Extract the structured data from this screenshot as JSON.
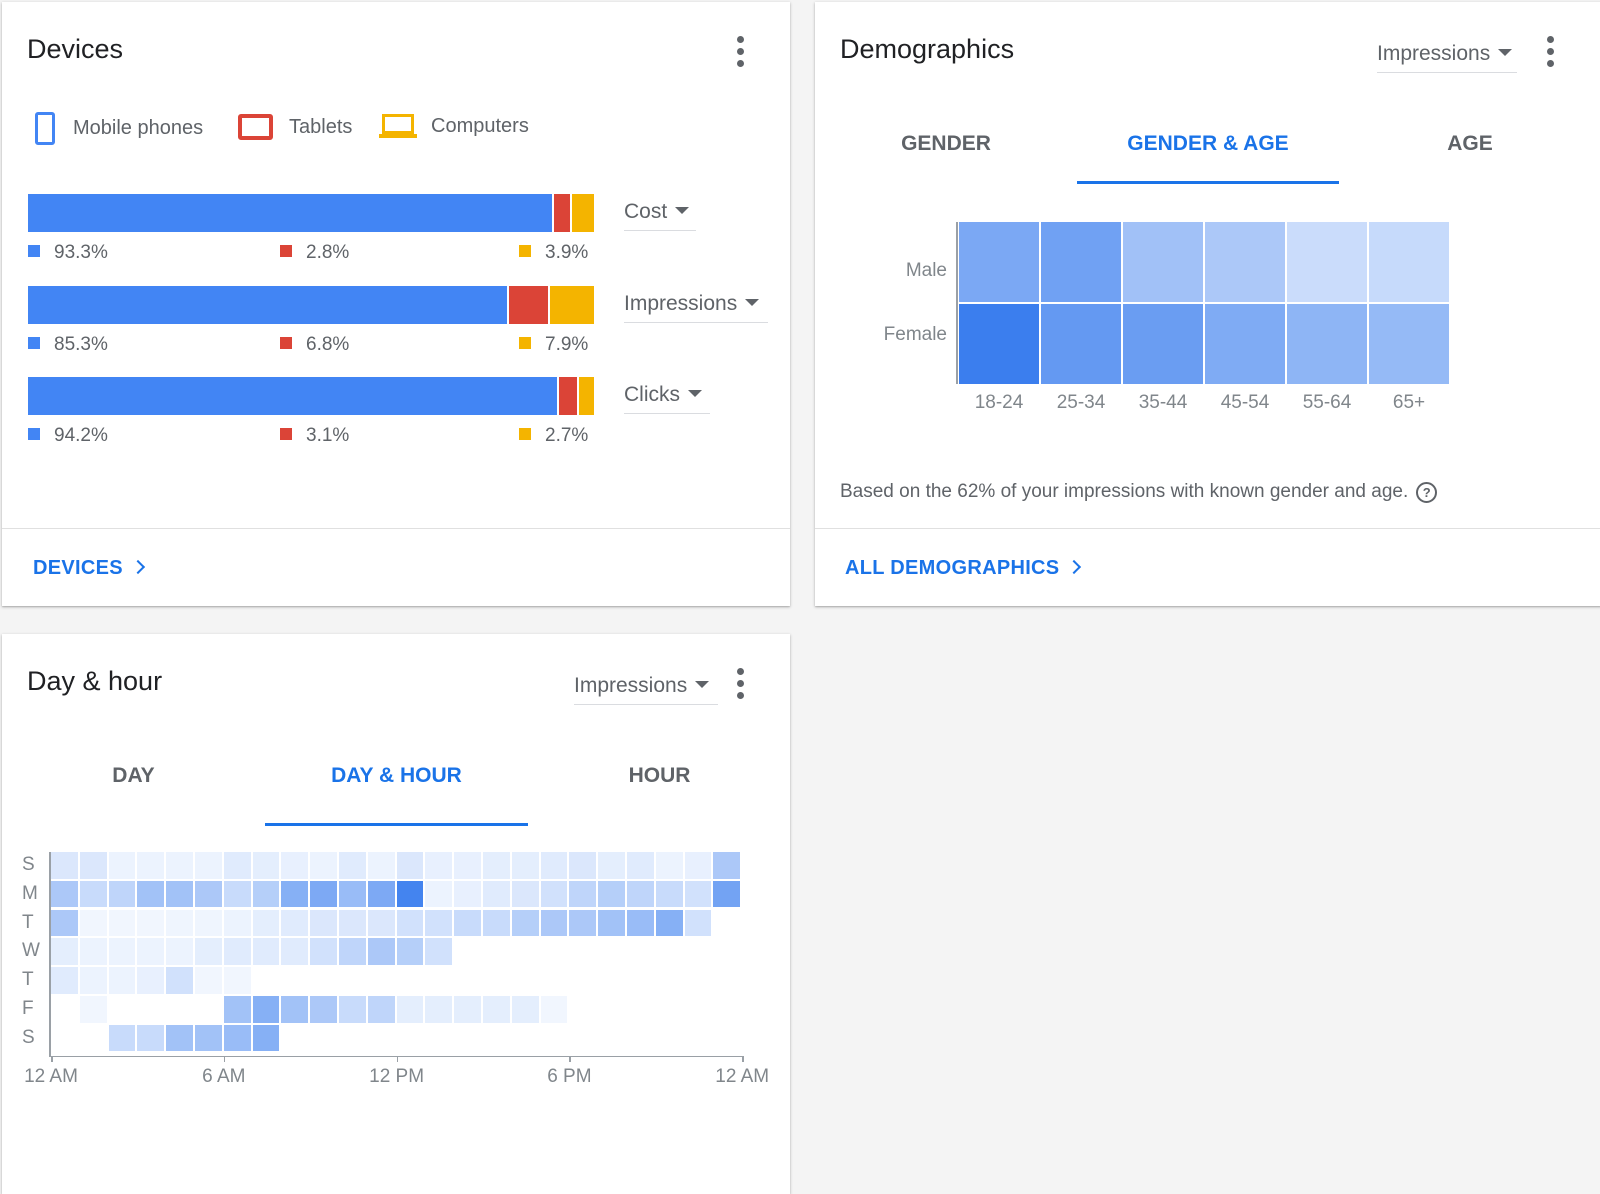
{
  "devices": {
    "title": "Devices",
    "legend": [
      {
        "label": "Mobile phones",
        "color": "#4285f4",
        "icon": "mobile-phone-icon"
      },
      {
        "label": "Tablets",
        "color": "#db4437",
        "icon": "tablet-icon"
      },
      {
        "label": "Computers",
        "color": "#f4b400",
        "icon": "computer-icon"
      }
    ],
    "metrics": [
      {
        "label": "Cost",
        "values": [
          93.3,
          2.8,
          3.9
        ],
        "labels": [
          "93.3%",
          "2.8%",
          "3.9%"
        ]
      },
      {
        "label": "Impressions",
        "values": [
          85.3,
          6.8,
          7.9
        ],
        "labels": [
          "85.3%",
          "6.8%",
          "7.9%"
        ]
      },
      {
        "label": "Clicks",
        "values": [
          94.2,
          3.1,
          2.7
        ],
        "labels": [
          "94.2%",
          "3.1%",
          "2.7%"
        ]
      }
    ],
    "footer_link": "DEVICES"
  },
  "demographics": {
    "title": "Demographics",
    "metric_select": "Impressions",
    "tabs": [
      "GENDER",
      "GENDER & AGE",
      "AGE"
    ],
    "active_tab": 1,
    "rows": [
      "Male",
      "Female"
    ],
    "columns": [
      "18-24",
      "25-34",
      "35-44",
      "45-54",
      "55-64",
      "65+"
    ],
    "intensity": [
      [
        0.66,
        0.72,
        0.46,
        0.4,
        0.24,
        0.26
      ],
      [
        1.0,
        0.78,
        0.75,
        0.64,
        0.56,
        0.52
      ]
    ],
    "note": "Based on the 62% of your impressions with known gender and age.",
    "footer_link": "ALL DEMOGRAPHICS"
  },
  "day_hour": {
    "title": "Day & hour",
    "metric_select": "Impressions",
    "tabs": [
      "DAY",
      "DAY & HOUR",
      "HOUR"
    ],
    "active_tab": 1,
    "days": [
      "S",
      "M",
      "T",
      "W",
      "T",
      "F",
      "S"
    ],
    "x_ticks": [
      "12 AM",
      "6 AM",
      "12 PM",
      "6 PM",
      "12 AM"
    ],
    "intensity": [
      [
        0.15,
        0.15,
        0.06,
        0.06,
        0.06,
        0.06,
        0.12,
        0.1,
        0.08,
        0.06,
        0.12,
        0.06,
        0.15,
        0.08,
        0.08,
        0.1,
        0.1,
        0.12,
        0.15,
        0.1,
        0.12,
        0.06,
        0.08,
        0.4
      ],
      [
        0.4,
        0.25,
        0.3,
        0.45,
        0.45,
        0.4,
        0.25,
        0.35,
        0.6,
        0.65,
        0.5,
        0.65,
        0.95,
        0.06,
        0.08,
        0.12,
        0.15,
        0.2,
        0.3,
        0.35,
        0.3,
        0.25,
        0.2,
        0.7
      ],
      [
        0.4,
        0.03,
        0.03,
        0.03,
        0.04,
        0.04,
        0.06,
        0.1,
        0.12,
        0.15,
        0.15,
        0.15,
        0.2,
        0.2,
        0.25,
        0.25,
        0.35,
        0.4,
        0.4,
        0.45,
        0.5,
        0.6,
        0.2,
        0
      ],
      [
        0.1,
        0.06,
        0.06,
        0.06,
        0.06,
        0.1,
        0.12,
        0.12,
        0.12,
        0.2,
        0.3,
        0.4,
        0.35,
        0.2,
        0,
        0,
        0,
        0,
        0,
        0,
        0,
        0,
        0,
        0
      ],
      [
        0.12,
        0.06,
        0.06,
        0.08,
        0.2,
        0.03,
        0.03,
        0,
        0,
        0,
        0,
        0,
        0,
        0,
        0,
        0,
        0,
        0,
        0,
        0,
        0,
        0,
        0,
        0
      ],
      [
        0,
        0.03,
        0,
        0,
        0,
        0,
        0.45,
        0.6,
        0.45,
        0.4,
        0.25,
        0.3,
        0.1,
        0.1,
        0.1,
        0.1,
        0.1,
        0.03,
        0,
        0,
        0,
        0,
        0,
        0
      ],
      [
        0,
        0,
        0.25,
        0.25,
        0.45,
        0.45,
        0.5,
        0.6,
        0,
        0,
        0,
        0,
        0,
        0,
        0,
        0,
        0,
        0,
        0,
        0,
        0,
        0,
        0,
        0
      ]
    ]
  }
}
